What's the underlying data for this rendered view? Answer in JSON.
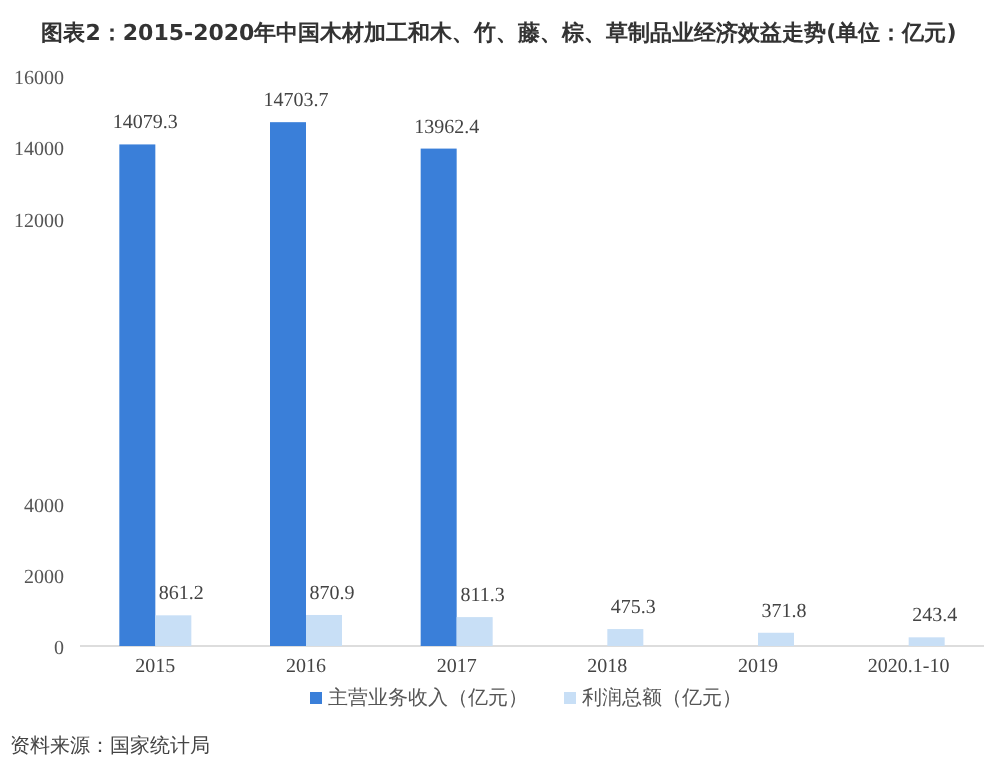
{
  "chart_data": {
    "type": "bar",
    "title": "图表2：2015-2020年中国木材加工和木、竹、藤、棕、草制品业经济效益走势(单位：亿元)",
    "categories": [
      "2015",
      "2016",
      "2017",
      "2018",
      "2019",
      "2020.1-10"
    ],
    "series": [
      {
        "name": "主营业务收入（亿元）",
        "color": "#3a7fd9",
        "values": [
          14079.3,
          14703.7,
          13962.4,
          null,
          null,
          null
        ]
      },
      {
        "name": "利润总额（亿元）",
        "color": "#c8dff6",
        "values": [
          861.2,
          870.9,
          811.3,
          475.3,
          371.8,
          243.4
        ]
      }
    ],
    "ylim": [
      0,
      16000
    ],
    "yticks": [
      0,
      2000,
      4000,
      12000,
      14000,
      16000
    ],
    "data_labels": true,
    "legend": "bottom",
    "grid": false,
    "annotations": [
      "资料来源：国家统计局"
    ]
  }
}
